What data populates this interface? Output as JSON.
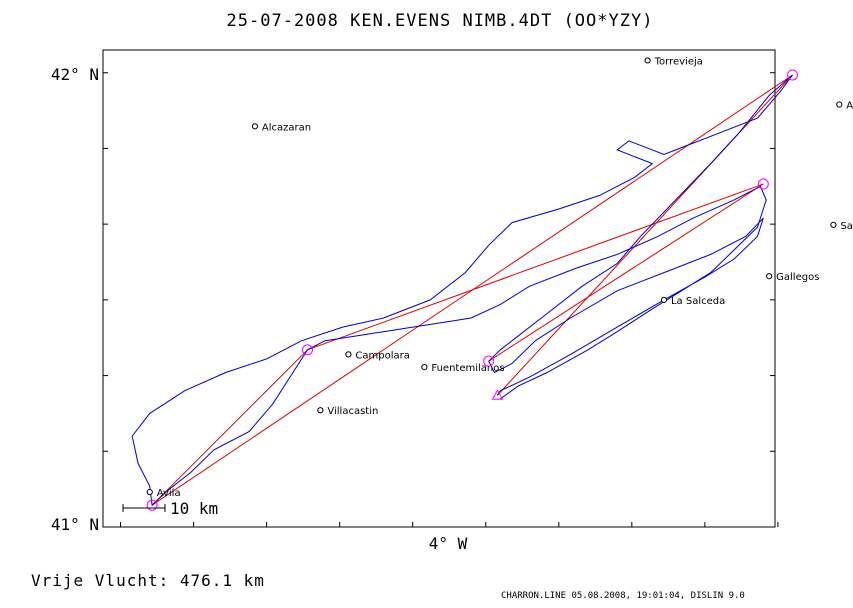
{
  "title": "25-07-2008   KEN.EVENS   NIMB.4DT (OO*YZY)",
  "footer": {
    "distance": "Vrije Vlucht:  476.1 km",
    "stamp": "CHARRON.LINE 05.08.2008, 19:01:04, DISLIN 9.0"
  },
  "colors": {
    "track": "#0000cc",
    "task": "#dd0000",
    "turnpoint": "#ff00ff",
    "frame": "#000000"
  },
  "chart_data": {
    "type": "map",
    "xlabel": "4° W",
    "ylabels": [
      "42° N",
      "41° N"
    ],
    "xlim": [
      -4.78,
      -3.63
    ],
    "ylim": [
      41.0,
      42.05
    ],
    "x_ticks": [
      -4.75,
      -4.625,
      -4.5,
      -4.375,
      -4.25,
      -4.125,
      -4.0,
      -3.875,
      -3.75,
      -3.625
    ],
    "y_ticks": [
      41.0,
      41.1667,
      41.3333,
      41.5,
      41.6667,
      41.8333,
      42.0
    ],
    "scale_bar": {
      "length_km": 10,
      "label": "10 km"
    },
    "places": [
      {
        "name": "Torrevieja",
        "lon": -3.848,
        "lat": 42.027
      },
      {
        "name": "Ayllon",
        "lon": -3.52,
        "lat": 41.93
      },
      {
        "name": "Alcazaran",
        "lon": -4.52,
        "lat": 41.882
      },
      {
        "name": "Santo Tome",
        "lon": -3.53,
        "lat": 41.665
      },
      {
        "name": "Gallegos",
        "lon": -3.64,
        "lat": 41.552
      },
      {
        "name": "La Salceda",
        "lon": -3.82,
        "lat": 41.5
      },
      {
        "name": "Campolara",
        "lon": -4.36,
        "lat": 41.38
      },
      {
        "name": "Fuentemilanos",
        "lon": -4.23,
        "lat": 41.352
      },
      {
        "name": "Villacastin",
        "lon": -4.408,
        "lat": 41.257
      },
      {
        "name": "Avila",
        "lon": -4.7,
        "lat": 41.077
      }
    ],
    "turnpoints": [
      {
        "lon": -3.6,
        "lat": 41.995
      },
      {
        "lon": -3.65,
        "lat": 41.755
      },
      {
        "lon": -4.43,
        "lat": 41.39
      },
      {
        "lon": -4.696,
        "lat": 41.048
      },
      {
        "lon": -4.12,
        "lat": 41.365
      }
    ],
    "start": {
      "lon": -4.105,
      "lat": 41.29
    },
    "task": [
      [
        -4.105,
        41.29
      ],
      [
        -3.6,
        41.995
      ],
      [
        -4.696,
        41.048
      ],
      [
        -4.43,
        41.39
      ],
      [
        -3.65,
        41.755
      ],
      [
        -4.12,
        41.365
      ]
    ],
    "track": [
      [
        -4.1,
        41.282
      ],
      [
        -4.07,
        41.31
      ],
      [
        -4.02,
        41.34
      ],
      [
        -3.95,
        41.39
      ],
      [
        -3.9,
        41.43
      ],
      [
        -3.84,
        41.48
      ],
      [
        -3.79,
        41.52
      ],
      [
        -3.74,
        41.56
      ],
      [
        -3.7,
        41.61
      ],
      [
        -3.66,
        41.66
      ],
      [
        -3.645,
        41.72
      ],
      [
        -3.655,
        41.75
      ],
      [
        -3.7,
        41.72
      ],
      [
        -3.77,
        41.68
      ],
      [
        -3.83,
        41.64
      ],
      [
        -3.9,
        41.6
      ],
      [
        -3.97,
        41.57
      ],
      [
        -4.05,
        41.53
      ],
      [
        -4.1,
        41.49
      ],
      [
        -4.15,
        41.46
      ],
      [
        -4.2,
        41.45
      ],
      [
        -4.25,
        41.44
      ],
      [
        -4.3,
        41.43
      ],
      [
        -4.35,
        41.42
      ],
      [
        -4.4,
        41.41
      ],
      [
        -4.43,
        41.39
      ],
      [
        -4.46,
        41.33
      ],
      [
        -4.49,
        41.27
      ],
      [
        -4.53,
        41.21
      ],
      [
        -4.59,
        41.17
      ],
      [
        -4.63,
        41.12
      ],
      [
        -4.67,
        41.08
      ],
      [
        -4.696,
        41.048
      ],
      [
        -4.7,
        41.09
      ],
      [
        -4.72,
        41.14
      ],
      [
        -4.73,
        41.2
      ],
      [
        -4.7,
        41.25
      ],
      [
        -4.64,
        41.3
      ],
      [
        -4.57,
        41.34
      ],
      [
        -4.5,
        41.37
      ],
      [
        -4.44,
        41.41
      ],
      [
        -4.37,
        41.44
      ],
      [
        -4.3,
        41.46
      ],
      [
        -4.22,
        41.5
      ],
      [
        -4.16,
        41.56
      ],
      [
        -4.12,
        41.62
      ],
      [
        -4.08,
        41.67
      ],
      [
        -4.0,
        41.7
      ],
      [
        -3.93,
        41.73
      ],
      [
        -3.87,
        41.77
      ],
      [
        -3.84,
        41.8
      ],
      [
        -3.9,
        41.83
      ],
      [
        -3.88,
        41.85
      ],
      [
        -3.82,
        41.82
      ],
      [
        -3.78,
        41.84
      ],
      [
        -3.72,
        41.87
      ],
      [
        -3.66,
        41.9
      ],
      [
        -3.62,
        41.96
      ],
      [
        -3.6,
        41.995
      ],
      [
        -3.64,
        41.95
      ],
      [
        -3.69,
        41.87
      ],
      [
        -3.74,
        41.8
      ],
      [
        -3.8,
        41.72
      ],
      [
        -3.86,
        41.64
      ],
      [
        -3.9,
        41.58
      ],
      [
        -3.96,
        41.53
      ],
      [
        -4.02,
        41.47
      ],
      [
        -4.07,
        41.42
      ],
      [
        -4.1,
        41.39
      ],
      [
        -4.12,
        41.365
      ],
      [
        -4.11,
        41.34
      ],
      [
        -4.08,
        41.36
      ],
      [
        -4.04,
        41.41
      ],
      [
        -3.98,
        41.46
      ],
      [
        -3.9,
        41.52
      ],
      [
        -3.82,
        41.56
      ],
      [
        -3.74,
        41.6
      ],
      [
        -3.68,
        41.64
      ],
      [
        -3.65,
        41.68
      ],
      [
        -3.66,
        41.64
      ],
      [
        -3.7,
        41.59
      ],
      [
        -3.75,
        41.55
      ],
      [
        -3.82,
        41.5
      ],
      [
        -3.9,
        41.44
      ],
      [
        -3.98,
        41.38
      ],
      [
        -4.05,
        41.33
      ],
      [
        -4.1,
        41.3
      ],
      [
        -4.105,
        41.29
      ]
    ]
  }
}
